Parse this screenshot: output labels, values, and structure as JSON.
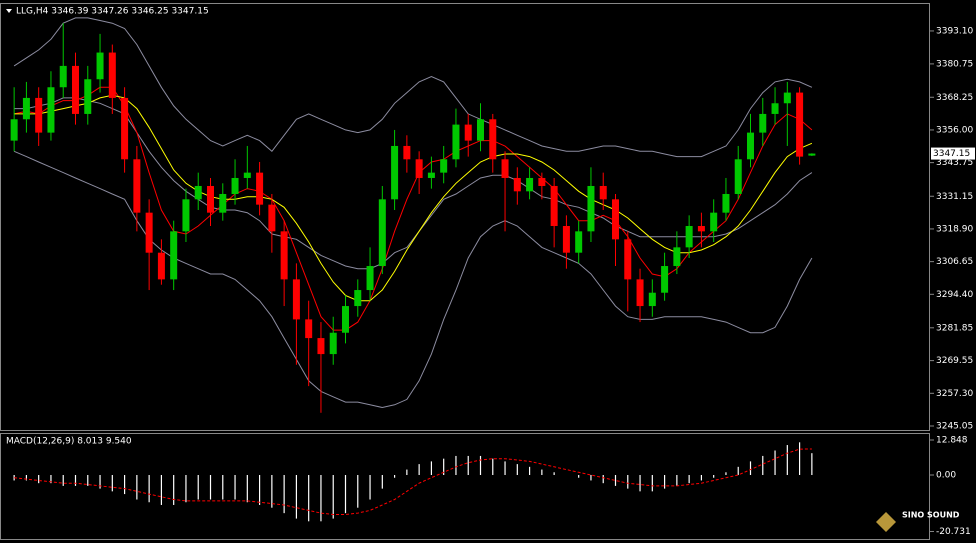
{
  "chart_data": [
    {
      "type": "candlestick",
      "title": "LLG,H4 3346.39 3347.26 3346.25 3347.15",
      "up_color": "#00c800",
      "down_color": "#ff0000",
      "candles": [
        [
          3352,
          3372,
          3348,
          3360
        ],
        [
          3360,
          3374,
          3355,
          3368
        ],
        [
          3368,
          3372,
          3350,
          3355
        ],
        [
          3355,
          3378,
          3352,
          3372
        ],
        [
          3372,
          3396,
          3368,
          3380
        ],
        [
          3380,
          3385,
          3358,
          3362
        ],
        [
          3362,
          3380,
          3358,
          3375
        ],
        [
          3375,
          3392,
          3370,
          3385
        ],
        [
          3385,
          3388,
          3362,
          3368
        ],
        [
          3368,
          3372,
          3340,
          3345
        ],
        [
          3345,
          3350,
          3318,
          3325
        ],
        [
          3325,
          3330,
          3296,
          3310
        ],
        [
          3310,
          3315,
          3298,
          3300
        ],
        [
          3300,
          3322,
          3296,
          3318
        ],
        [
          3318,
          3334,
          3314,
          3330
        ],
        [
          3330,
          3340,
          3326,
          3335
        ],
        [
          3335,
          3338,
          3320,
          3325
        ],
        [
          3325,
          3336,
          3322,
          3332
        ],
        [
          3332,
          3345,
          3328,
          3338
        ],
        [
          3338,
          3350,
          3334,
          3340
        ],
        [
          3340,
          3344,
          3324,
          3328
        ],
        [
          3328,
          3332,
          3310,
          3318
        ],
        [
          3318,
          3322,
          3290,
          3300
        ],
        [
          3300,
          3306,
          3268,
          3285
        ],
        [
          3285,
          3292,
          3260,
          3278
        ],
        [
          3278,
          3284,
          3250,
          3272
        ],
        [
          3272,
          3286,
          3268,
          3280
        ],
        [
          3280,
          3294,
          3276,
          3290
        ],
        [
          3290,
          3300,
          3286,
          3296
        ],
        [
          3296,
          3312,
          3292,
          3305
        ],
        [
          3305,
          3335,
          3302,
          3330
        ],
        [
          3330,
          3356,
          3326,
          3350
        ],
        [
          3350,
          3354,
          3340,
          3345
        ],
        [
          3345,
          3348,
          3332,
          3338
        ],
        [
          3338,
          3346,
          3334,
          3340
        ],
        [
          3340,
          3350,
          3336,
          3345
        ],
        [
          3345,
          3364,
          3342,
          3358
        ],
        [
          3358,
          3362,
          3346,
          3352
        ],
        [
          3352,
          3366,
          3348,
          3360
        ],
        [
          3360,
          3362,
          3340,
          3345
        ],
        [
          3345,
          3348,
          3318,
          3338
        ],
        [
          3338,
          3342,
          3328,
          3333
        ],
        [
          3333,
          3342,
          3330,
          3338
        ],
        [
          3338,
          3340,
          3330,
          3335
        ],
        [
          3335,
          3338,
          3312,
          3320
        ],
        [
          3320,
          3324,
          3304,
          3310
        ],
        [
          3310,
          3322,
          3306,
          3318
        ],
        [
          3318,
          3342,
          3314,
          3335
        ],
        [
          3335,
          3340,
          3326,
          3330
        ],
        [
          3330,
          3332,
          3305,
          3315
        ],
        [
          3315,
          3318,
          3288,
          3300
        ],
        [
          3300,
          3304,
          3284,
          3290
        ],
        [
          3290,
          3300,
          3286,
          3295
        ],
        [
          3295,
          3310,
          3292,
          3305
        ],
        [
          3305,
          3318,
          3302,
          3312
        ],
        [
          3312,
          3324,
          3308,
          3320
        ],
        [
          3320,
          3325,
          3312,
          3318
        ],
        [
          3318,
          3330,
          3314,
          3325
        ],
        [
          3325,
          3338,
          3322,
          3332
        ],
        [
          3332,
          3350,
          3330,
          3345
        ],
        [
          3345,
          3362,
          3342,
          3355
        ],
        [
          3355,
          3368,
          3350,
          3362
        ],
        [
          3362,
          3372,
          3358,
          3366
        ],
        [
          3366,
          3374,
          3350,
          3370
        ],
        [
          3370,
          3372,
          3343,
          3346
        ],
        [
          3346.39,
          3347.26,
          3346.25,
          3347.15
        ]
      ],
      "lines": [
        {
          "color": "#8c8ca0",
          "values": [
            3380,
            3383,
            3386,
            3390,
            3396,
            3398,
            3398,
            3397,
            3396,
            3394,
            3388,
            3380,
            3372,
            3365,
            3360,
            3356,
            3352,
            3350,
            3352,
            3354,
            3352,
            3348,
            3354,
            3360,
            3362,
            3360,
            3358,
            3356,
            3355,
            3356,
            3360,
            3366,
            3370,
            3374,
            3376,
            3374,
            3368,
            3362,
            3360,
            3358,
            3356,
            3354,
            3352,
            3350,
            3349,
            3348,
            3348,
            3349,
            3350,
            3350,
            3349,
            3348,
            3348,
            3347,
            3346,
            3346,
            3346,
            3348,
            3350,
            3356,
            3364,
            3370,
            3374,
            3375,
            3374,
            3372
          ]
        },
        {
          "color": "#8c8ca0",
          "values": [
            3364,
            3364,
            3365,
            3366,
            3368,
            3368,
            3367,
            3366,
            3364,
            3362,
            3355,
            3348,
            3342,
            3337,
            3333,
            3330,
            3327,
            3326,
            3326,
            3325,
            3322,
            3317,
            3316,
            3315,
            3312,
            3309,
            3307,
            3305,
            3304,
            3304,
            3306,
            3310,
            3312,
            3318,
            3324,
            3330,
            3332,
            3335,
            3338,
            3339,
            3339,
            3337,
            3334,
            3331,
            3330,
            3328,
            3327,
            3325,
            3323,
            3320,
            3318,
            3316,
            3316,
            3316,
            3316,
            3316,
            3316,
            3316,
            3317,
            3319,
            3322,
            3325,
            3328,
            3332,
            3337,
            3340
          ]
        },
        {
          "color": "#8c8ca0",
          "values": [
            3348,
            3346,
            3344,
            3342,
            3340,
            3338,
            3336,
            3334,
            3332,
            3330,
            3322,
            3315,
            3311,
            3308,
            3306,
            3304,
            3302,
            3302,
            3300,
            3296,
            3292,
            3286,
            3278,
            3270,
            3262,
            3258,
            3256,
            3254,
            3254,
            3253,
            3252,
            3253,
            3255,
            3262,
            3272,
            3285,
            3296,
            3308,
            3316,
            3320,
            3322,
            3320,
            3316,
            3312,
            3310,
            3308,
            3306,
            3302,
            3296,
            3290,
            3286,
            3285,
            3285,
            3286,
            3286,
            3286,
            3286,
            3285,
            3284,
            3282,
            3280,
            3280,
            3282,
            3290,
            3300,
            3308
          ]
        },
        {
          "color": "#ff0000",
          "values": [
            3362,
            3363,
            3362,
            3365,
            3367,
            3367,
            3369,
            3372,
            3372,
            3365,
            3355,
            3340,
            3326,
            3318,
            3317,
            3320,
            3324,
            3328,
            3332,
            3334,
            3333,
            3330,
            3322,
            3310,
            3298,
            3286,
            3281,
            3281,
            3284,
            3292,
            3304,
            3318,
            3330,
            3340,
            3344,
            3345,
            3348,
            3350,
            3352,
            3352,
            3350,
            3346,
            3342,
            3338,
            3334,
            3328,
            3322,
            3322,
            3324,
            3322,
            3316,
            3308,
            3302,
            3301,
            3304,
            3310,
            3314,
            3318,
            3322,
            3330,
            3340,
            3350,
            3358,
            3362,
            3360,
            3356
          ]
        },
        {
          "color": "#ffff00",
          "values": [
            3362,
            3362,
            3362,
            3363,
            3364,
            3365,
            3366,
            3368,
            3369,
            3368,
            3364,
            3357,
            3349,
            3341,
            3336,
            3333,
            3331,
            3330,
            3330,
            3331,
            3331,
            3330,
            3327,
            3321,
            3314,
            3306,
            3299,
            3294,
            3292,
            3292,
            3296,
            3303,
            3311,
            3318,
            3325,
            3331,
            3336,
            3340,
            3344,
            3346,
            3347,
            3347,
            3346,
            3344,
            3341,
            3337,
            3333,
            3330,
            3328,
            3326,
            3323,
            3319,
            3315,
            3312,
            3310,
            3310,
            3311,
            3313,
            3316,
            3320,
            3326,
            3333,
            3340,
            3346,
            3349,
            3351
          ]
        }
      ],
      "ylim": [
        3243.55,
        3403.2
      ],
      "yticks": [
        {
          "value": 3393.1,
          "label": "3393.10"
        },
        3380.75,
        3368.25,
        {
          "value": 3356,
          "label": "3356.00"
        },
        3343.75,
        3331.15,
        {
          "value": 3318.9,
          "label": "3318.90"
        },
        3306.65,
        {
          "value": 3294.4,
          "label": "3294.40"
        },
        3281.85,
        3269.55,
        {
          "value": 3257.3,
          "label": "3257.30"
        },
        3245.05
      ]
    },
    {
      "type": "macd",
      "title": "MACD(12,26,9) 8.013 9.540",
      "color": "#ffffff",
      "signal_color": "#ff0000",
      "values": [
        -2,
        -2,
        -3,
        -3,
        -4,
        -4,
        -4,
        -5,
        -6,
        -7,
        -9,
        -10,
        -11,
        -11,
        -10,
        -9,
        -9,
        -9,
        -9,
        -10,
        -11,
        -12,
        -14,
        -16,
        -17,
        -17,
        -16,
        -14,
        -12,
        -9,
        -5,
        -1,
        2,
        4,
        5,
        6,
        7,
        7,
        7,
        6,
        5,
        4,
        3,
        2,
        1,
        0,
        -1,
        -2,
        -3,
        -4,
        -5,
        -6,
        -6,
        -5,
        -4,
        -3,
        -2,
        -1,
        1,
        3,
        5,
        7,
        9,
        11,
        12,
        8.013
      ],
      "signal": [
        -1,
        -1.5,
        -2,
        -2.5,
        -3,
        -3,
        -3.5,
        -4,
        -4.5,
        -5,
        -6,
        -7,
        -8,
        -9,
        -9.5,
        -9.5,
        -9.5,
        -9.5,
        -9.5,
        -9.5,
        -10,
        -10.5,
        -11,
        -12,
        -13,
        -14,
        -14.5,
        -14.5,
        -14,
        -13,
        -11,
        -9,
        -6,
        -3,
        -1,
        1,
        3,
        4.5,
        5.5,
        6,
        6,
        5.5,
        5,
        4,
        3,
        2,
        1,
        0,
        -1,
        -2,
        -3,
        -3.5,
        -4,
        -4,
        -4,
        -3.5,
        -3,
        -2,
        -1,
        0,
        2,
        4,
        6,
        8,
        9.5,
        9.54
      ],
      "ylim": [
        -23.86,
        15.42
      ],
      "yticks": [
        12.848,
        {
          "value": 0,
          "label": "0.00"
        },
        -20.731
      ]
    }
  ],
  "watermark": "SINO SOUND"
}
